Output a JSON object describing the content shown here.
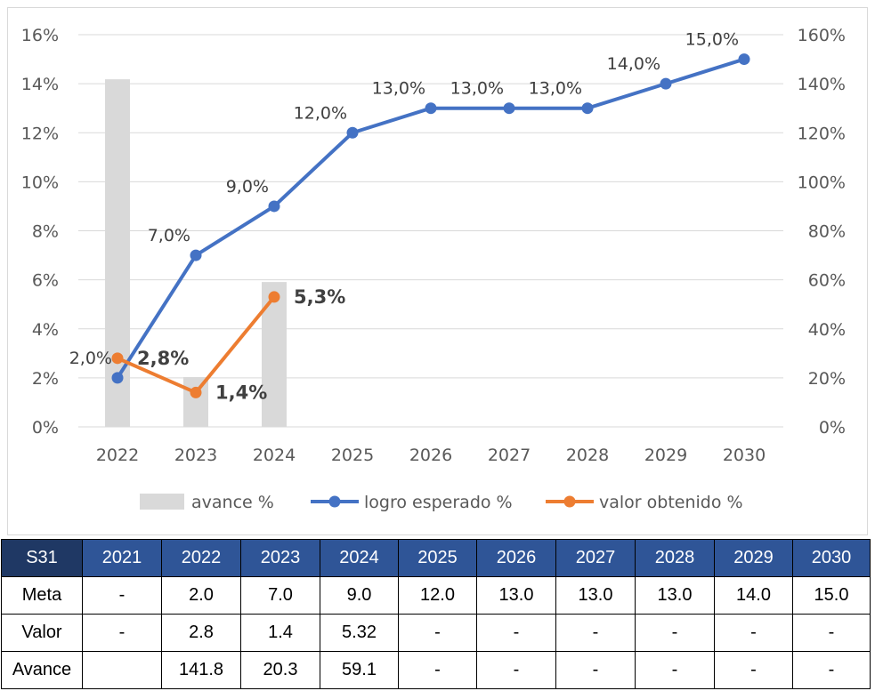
{
  "chart_data": {
    "type": "bar+line",
    "categories": [
      "2022",
      "2023",
      "2024",
      "2025",
      "2026",
      "2027",
      "2028",
      "2029",
      "2030"
    ],
    "y_left": {
      "ticks": [
        "0%",
        "2%",
        "4%",
        "6%",
        "8%",
        "10%",
        "12%",
        "14%",
        "16%"
      ],
      "ylim": [
        0,
        16
      ]
    },
    "y_right": {
      "ticks": [
        "0%",
        "20%",
        "40%",
        "60%",
        "80%",
        "100%",
        "120%",
        "140%",
        "160%"
      ],
      "ylim": [
        0,
        160
      ]
    },
    "grid": true,
    "legend_position": "bottom",
    "series": [
      {
        "name": "avance %",
        "type": "bar",
        "axis": "right",
        "color": "#d9d9d9",
        "values": [
          141.8,
          20.3,
          59.1,
          null,
          null,
          null,
          null,
          null,
          null
        ]
      },
      {
        "name": "logro esperado %",
        "type": "line",
        "axis": "left",
        "color": "#4472c4",
        "values": [
          2.0,
          7.0,
          9.0,
          12.0,
          13.0,
          13.0,
          13.0,
          14.0,
          15.0
        ],
        "labels": [
          "2,0%",
          "7,0%",
          "9,0%",
          "12,0%",
          "13,0%",
          "13,0%",
          "13,0%",
          "14,0%",
          "15,0%"
        ]
      },
      {
        "name": "valor obtenido %",
        "type": "line",
        "axis": "left",
        "color": "#ed7d31",
        "values": [
          2.8,
          1.4,
          5.3,
          null,
          null,
          null,
          null,
          null,
          null
        ],
        "labels": [
          "2,8%",
          "1,4%",
          "5,3%",
          null,
          null,
          null,
          null,
          null,
          null
        ]
      }
    ]
  },
  "table": {
    "header": [
      "S31",
      "2021",
      "2022",
      "2023",
      "2024",
      "2025",
      "2026",
      "2027",
      "2028",
      "2029",
      "2030"
    ],
    "rows": [
      [
        "Meta",
        "-",
        "2.0",
        "7.0",
        "9.0",
        "12.0",
        "13.0",
        "13.0",
        "13.0",
        "14.0",
        "15.0"
      ],
      [
        "Valor",
        "-",
        "2.8",
        "1.4",
        "5.32",
        "-",
        "-",
        "-",
        "-",
        "-",
        "-"
      ],
      [
        "Avance",
        "",
        "141.8",
        "20.3",
        "59.1",
        "-",
        "-",
        "-",
        "-",
        "-",
        "-"
      ]
    ]
  }
}
